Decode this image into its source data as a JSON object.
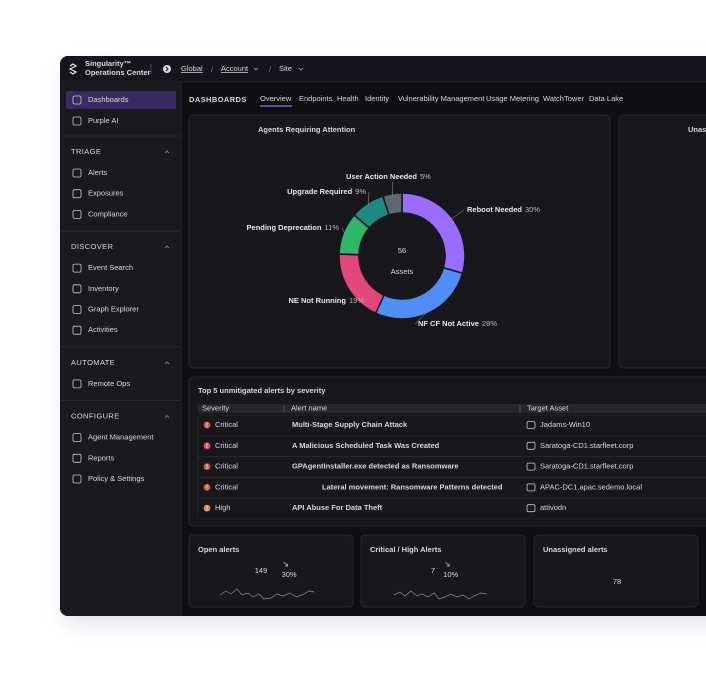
{
  "topbar": {
    "brand": "Singularity™",
    "product": "Operations Center",
    "breadcrumb": [
      "Global",
      "Account",
      "Site"
    ]
  },
  "sidebar": {
    "top_items": [
      "Dashboards",
      "Purple AI"
    ],
    "sections": [
      {
        "title": "TRIAGE",
        "items": [
          "Alerts",
          "Exposures",
          "Compliance"
        ]
      },
      {
        "title": "DISCOVER",
        "items": [
          "Event Search",
          "Inventory",
          "Graph Explorer",
          "Activities"
        ]
      },
      {
        "title": "AUTOMATE",
        "items": [
          "Remote Ops"
        ]
      },
      {
        "title": "CONFIGURE",
        "items": [
          "Agent Management",
          "Reports",
          "Policy & Settings"
        ]
      }
    ]
  },
  "header": {
    "title": "DASHBOARDS",
    "tabs": [
      "Overview",
      "Endpoints",
      "Health",
      "Identity",
      "Vulnerability Management",
      "Usage Metering",
      "WatchTower",
      "Data Lake"
    ]
  },
  "chart_data": {
    "type": "donut",
    "title": "Agents Requiring Attention",
    "center_value": 56,
    "center_label": "Assets",
    "categories": [
      "Reboot Needed",
      "NF CF Not Active",
      "NE Not Running",
      "Pending Deprecation",
      "Upgrade Required",
      "User Action Needed"
    ],
    "values": [
      30,
      28,
      19,
      11,
      9,
      5
    ],
    "value_labels": [
      "30%",
      "28%",
      "19%",
      "11%",
      "9%",
      "5%"
    ],
    "colors": [
      "#9a6cff",
      "#4e8ef6",
      "#e4457b",
      "#2fb767",
      "#1e8985",
      "#5d6770"
    ]
  },
  "side_card": {
    "title": "Unass"
  },
  "table": {
    "title": "Top 5 unmitigated alerts by severity",
    "columns": [
      "Severity",
      "Alert name",
      "Target Asset"
    ],
    "rows": [
      [
        "Critical",
        "Multi-Stage Supply Chain Attack",
        "Jadams-Win10"
      ],
      [
        "Critical",
        "A Malicious Scheduled Task Was Created",
        "Saratoga-CD1.starfleet.corp"
      ],
      [
        "Critical",
        "GPAgentInstaller.exe detected as Ransomware",
        "Saratoga-CD1.starfleet.corp"
      ],
      [
        "Critical",
        "Lateral movement: Ransomware Patterns detected",
        "APAC-DC1.apac.sedemo.local"
      ],
      [
        "High",
        "API Abuse For Data Theft",
        "attivodn"
      ]
    ]
  },
  "metrics": [
    {
      "title": "Open alerts",
      "value": 149,
      "change": "30%"
    },
    {
      "title": "Critical / High Alerts",
      "value": 7,
      "change": "10%"
    },
    {
      "title": "Unassigned alerts",
      "value": 78
    }
  ]
}
